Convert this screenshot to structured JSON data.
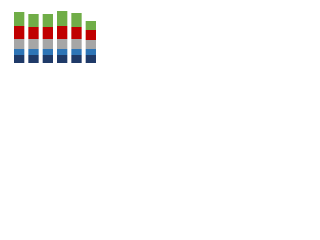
{
  "chart_data": {
    "type": "stacked_bar",
    "categories": [
      null,
      null,
      null,
      null,
      null,
      null
    ],
    "series": [
      {
        "color": "#1f3a68",
        "values": [
          8,
          8,
          8,
          8,
          8,
          8
        ]
      },
      {
        "color": "#2e75b6",
        "values": [
          6,
          6,
          6,
          6,
          6,
          6
        ]
      },
      {
        "color": "#a6a6a6",
        "values": [
          10,
          10,
          10,
          10,
          10,
          9
        ]
      },
      {
        "color": "#c00000",
        "values": [
          13,
          12,
          12,
          13,
          12,
          10
        ]
      },
      {
        "color": "#70ad47",
        "values": [
          14,
          13,
          13,
          15,
          14,
          9
        ]
      }
    ],
    "ylim": [
      0,
      55
    ]
  }
}
